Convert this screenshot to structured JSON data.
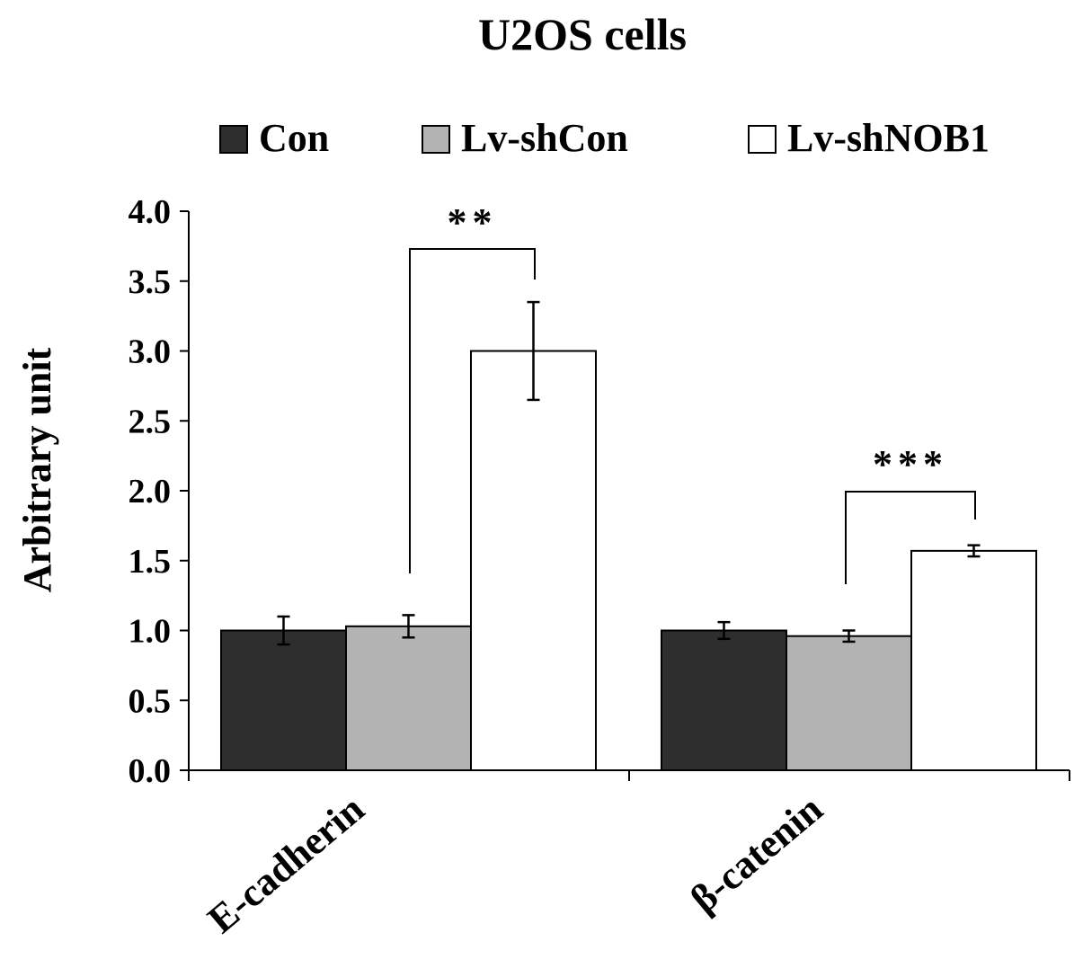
{
  "chart_data": {
    "type": "bar",
    "title": "U2OS cells",
    "xlabel": "",
    "ylabel": "Arbitrary unit",
    "ylim": [
      0,
      4.0
    ],
    "yticks": [
      "0.0",
      "0.5",
      "1.0",
      "1.5",
      "2.0",
      "2.5",
      "3.0",
      "3.5",
      "4.0"
    ],
    "categories": [
      "E-cadherin",
      "β-catenin"
    ],
    "series": [
      {
        "name": "Con",
        "values": [
          1.0,
          1.0
        ],
        "errors": [
          0.1,
          0.06
        ],
        "color": "#2e2e2e"
      },
      {
        "name": "Lv-shCon",
        "values": [
          1.03,
          0.96
        ],
        "errors": [
          0.08,
          0.04
        ],
        "color": "#b3b3b3"
      },
      {
        "name": "Lv-shNOB1",
        "values": [
          3.0,
          1.57
        ],
        "errors": [
          0.35,
          0.04
        ],
        "color": "#ffffff"
      }
    ],
    "significance": [
      {
        "category": "E-cadherin",
        "label": "**"
      },
      {
        "category": "β-catenin",
        "label": "***"
      }
    ],
    "legend": "top",
    "grid": false
  }
}
